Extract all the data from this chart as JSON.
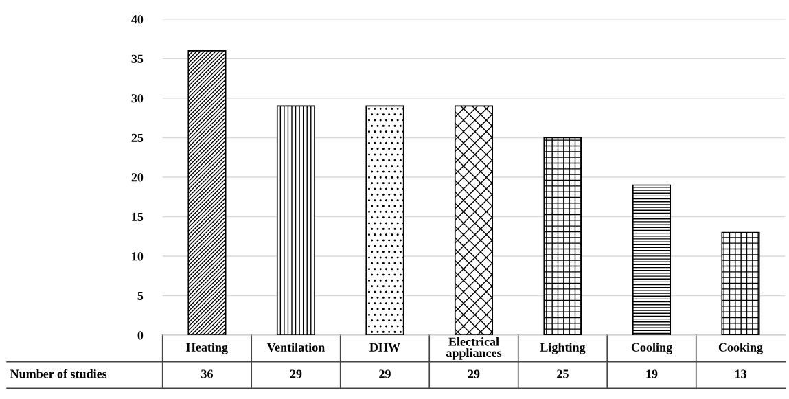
{
  "chart_data": {
    "type": "bar",
    "categories": [
      "Heating",
      "Ventilation",
      "DHW",
      "Electrical\nappliances",
      "Lighting",
      "Cooling",
      "Cooking"
    ],
    "series": [
      {
        "name": "Number of studies",
        "color": "#000000",
        "values": [
          36,
          29,
          29,
          29,
          25,
          19,
          13
        ]
      }
    ],
    "ylim": [
      0,
      40
    ],
    "yticks": [
      0,
      5,
      10,
      15,
      20,
      25,
      30,
      35,
      40
    ],
    "grid": "y",
    "data_labels": true
  }
}
